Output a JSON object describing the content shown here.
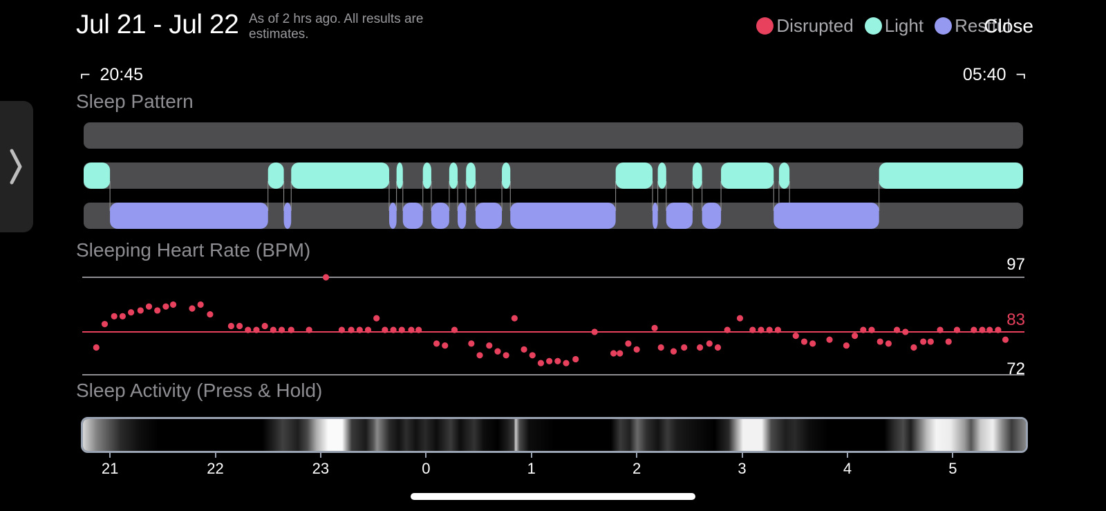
{
  "header": {
    "date_range": "Jul 21 - Jul 22",
    "subtitle": "As of 2 hrs ago. All results are estimates.",
    "close_label": "Close"
  },
  "legend": [
    {
      "label": "Disrupted",
      "color": "#e8415e"
    },
    {
      "label": "Light",
      "color": "#98f3e1"
    },
    {
      "label": "Restful",
      "color": "#959af0"
    }
  ],
  "time_range": {
    "start": "20:45",
    "end": "05:40"
  },
  "sections": {
    "sleep_pattern": "Sleep Pattern",
    "heart_rate": "Sleeping Heart Rate (BPM)",
    "activity": "Sleep Activity (Press & Hold)"
  },
  "icons": {
    "side_tab": "chevron-right-icon"
  },
  "chart_data": {
    "type": "scatter",
    "title": "Sleeping Heart Rate (BPM)",
    "x_unit": "hours",
    "x_range": [
      20.75,
      29.667
    ],
    "ylim": [
      72,
      97
    ],
    "reference_lines": {
      "max": 97,
      "avg": 83,
      "min": 72
    },
    "reference_labels": {
      "max": "97",
      "avg": "83",
      "min": "72"
    },
    "x_ticks": [
      {
        "label": "21",
        "x": 21
      },
      {
        "label": "22",
        "x": 22
      },
      {
        "label": "23",
        "x": 23
      },
      {
        "label": "0",
        "x": 24
      },
      {
        "label": "1",
        "x": 25
      },
      {
        "label": "2",
        "x": 26
      },
      {
        "label": "3",
        "x": 27
      },
      {
        "label": "4",
        "x": 28
      },
      {
        "label": "5",
        "x": 29
      }
    ],
    "points": [
      [
        20.87,
        79
      ],
      [
        20.95,
        85
      ],
      [
        21.04,
        87
      ],
      [
        21.12,
        87
      ],
      [
        21.2,
        88
      ],
      [
        21.29,
        88.5
      ],
      [
        21.37,
        89.5
      ],
      [
        21.45,
        88.5
      ],
      [
        21.53,
        89.5
      ],
      [
        21.6,
        90
      ],
      [
        21.78,
        89
      ],
      [
        21.86,
        90
      ],
      [
        21.95,
        87.5
      ],
      [
        22.15,
        84.5
      ],
      [
        22.23,
        84.5
      ],
      [
        22.31,
        83.5
      ],
      [
        22.39,
        83.5
      ],
      [
        22.47,
        84.5
      ],
      [
        22.55,
        83.5
      ],
      [
        22.63,
        83.5
      ],
      [
        22.72,
        83.5
      ],
      [
        22.89,
        83.5
      ],
      [
        23.2,
        83.5
      ],
      [
        23.29,
        83.5
      ],
      [
        23.37,
        83.5
      ],
      [
        23.45,
        83.5
      ],
      [
        23.53,
        86.5
      ],
      [
        23.61,
        83.5
      ],
      [
        23.69,
        83.5
      ],
      [
        23.77,
        83.5
      ],
      [
        23.86,
        83.5
      ],
      [
        23.93,
        83.5
      ],
      [
        24.1,
        80
      ],
      [
        24.18,
        79.5
      ],
      [
        24.27,
        83.5
      ],
      [
        24.43,
        80
      ],
      [
        24.51,
        77
      ],
      [
        24.6,
        79.5
      ],
      [
        24.68,
        78
      ],
      [
        24.76,
        77
      ],
      [
        24.84,
        86.5
      ],
      [
        24.93,
        78.5
      ],
      [
        25.01,
        77
      ],
      [
        25.09,
        75
      ],
      [
        25.17,
        75.5
      ],
      [
        25.25,
        75.5
      ],
      [
        25.33,
        75
      ],
      [
        25.42,
        76
      ],
      [
        25.6,
        83
      ],
      [
        25.78,
        77.5
      ],
      [
        25.84,
        77.5
      ],
      [
        25.92,
        80
      ],
      [
        26.0,
        78.5
      ],
      [
        26.17,
        84
      ],
      [
        26.23,
        79
      ],
      [
        26.35,
        78
      ],
      [
        26.45,
        79
      ],
      [
        26.6,
        79
      ],
      [
        26.69,
        80
      ],
      [
        26.77,
        79
      ],
      [
        26.86,
        83.5
      ],
      [
        26.98,
        86.5
      ],
      [
        27.1,
        83.5
      ],
      [
        27.18,
        83.5
      ],
      [
        27.26,
        83.5
      ],
      [
        27.34,
        83.5
      ],
      [
        27.51,
        82
      ],
      [
        27.59,
        80.5
      ],
      [
        27.67,
        80
      ],
      [
        27.83,
        81
      ],
      [
        27.99,
        79.5
      ],
      [
        28.07,
        82
      ],
      [
        28.15,
        83.5
      ],
      [
        28.23,
        83.5
      ],
      [
        28.31,
        80.5
      ],
      [
        28.39,
        80
      ],
      [
        28.47,
        83.5
      ],
      [
        28.55,
        83
      ],
      [
        28.63,
        79
      ],
      [
        28.72,
        80.5
      ],
      [
        28.79,
        80.5
      ],
      [
        28.88,
        83.5
      ],
      [
        28.96,
        80.5
      ],
      [
        29.04,
        83.5
      ],
      [
        29.2,
        83.5
      ],
      [
        29.28,
        83.5
      ],
      [
        29.35,
        83.5
      ],
      [
        29.43,
        83.5
      ],
      [
        29.5,
        81
      ]
    ]
  },
  "sleep_pattern_data": {
    "x_range": [
      20.75,
      29.667
    ],
    "light": [
      [
        20.75,
        21.0
      ],
      [
        22.5,
        22.65
      ],
      [
        22.72,
        23.65
      ],
      [
        23.72,
        23.78
      ],
      [
        23.97,
        24.05
      ],
      [
        24.22,
        24.3
      ],
      [
        24.38,
        24.47
      ],
      [
        24.72,
        24.8
      ],
      [
        25.8,
        26.15
      ],
      [
        26.2,
        26.28
      ],
      [
        26.53,
        26.62
      ],
      [
        26.8,
        27.3
      ],
      [
        27.35,
        27.45
      ],
      [
        28.3,
        29.667
      ]
    ],
    "restful": [
      [
        21.0,
        22.5
      ],
      [
        22.65,
        22.72
      ],
      [
        23.65,
        23.72
      ],
      [
        23.78,
        23.97
      ],
      [
        24.05,
        24.22
      ],
      [
        24.3,
        24.38
      ],
      [
        24.47,
        24.72
      ],
      [
        24.8,
        25.8
      ],
      [
        26.15,
        26.2
      ],
      [
        26.28,
        26.53
      ],
      [
        26.62,
        26.8
      ],
      [
        27.3,
        28.3
      ]
    ]
  }
}
